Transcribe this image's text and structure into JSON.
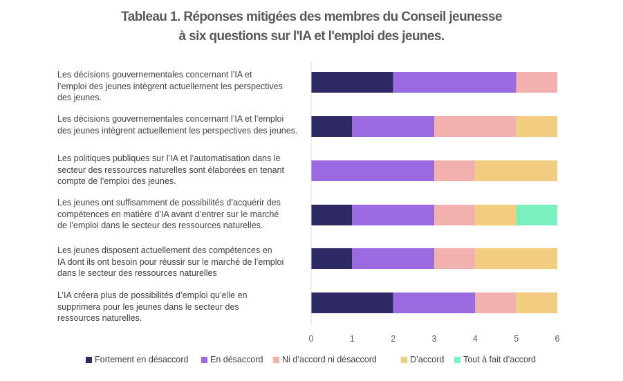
{
  "chart_data": {
    "type": "bar",
    "orientation": "horizontal",
    "stacked": true,
    "title": [
      "Tableau 1. Réponses mitigées des membres du Conseil jeunesse",
      "à six questions sur l'IA et l'emploi des jeunes."
    ],
    "categories": [
      [
        "Les décisions gouvernementales concernant l’IA et",
        "l’emploi des jeunes intègrent actuellement les perspectives",
        "des jeunes."
      ],
      [
        "Les décisions gouvernementales concernant l’IA et l’emploi",
        "des jeunes intègrent actuellement les perspectives des jeunes."
      ],
      [
        "Les politiques publiques sur l’IA et l’automatisation dans le",
        "secteur des ressources naturelles sont élaborées en tenant",
        "compte de l’emploi des jeunes."
      ],
      [
        "Les jeunes ont suffisamment de possibilités d’acquérir des",
        "compétences en matière d’IA avant d’entrer sur le marché",
        "de l’emploi dans le secteur des ressources naturelles."
      ],
      [
        "Les jeunes disposent actuellement des compétences en",
        "IA dont ils ont besoin pour réussir sur le marché de l’emploi",
        "dans le secteur des ressources naturelles"
      ],
      [
        "L’IA créera plus de possibilités d’emploi qu’elle en",
        "supprimera pour les jeunes dans le secteur des",
        "ressources naturelles."
      ]
    ],
    "series": [
      {
        "name": "Fortement en désaccord",
        "color": "#2e2a66",
        "values": [
          2,
          1,
          0,
          1,
          1,
          2
        ]
      },
      {
        "name": "En désaccord",
        "color": "#9b6ae0",
        "values": [
          3,
          2,
          3,
          2,
          2,
          2
        ]
      },
      {
        "name": "Ni d’accord ni désaccord",
        "color": "#f2b0ae",
        "values": [
          1,
          2,
          1,
          1,
          1,
          1
        ]
      },
      {
        "name": "D’accord",
        "color": "#f2cd7f",
        "values": [
          0,
          1,
          2,
          1,
          2,
          1
        ]
      },
      {
        "name": "Tout à fait d’accord",
        "color": "#7aefbf",
        "values": [
          0,
          0,
          0,
          1,
          0,
          0
        ]
      }
    ],
    "xlim": [
      0,
      6
    ],
    "xticks": [
      "0",
      "1",
      "2",
      "3",
      "4",
      "5",
      "6"
    ],
    "grid": false,
    "legend": "bottom"
  }
}
